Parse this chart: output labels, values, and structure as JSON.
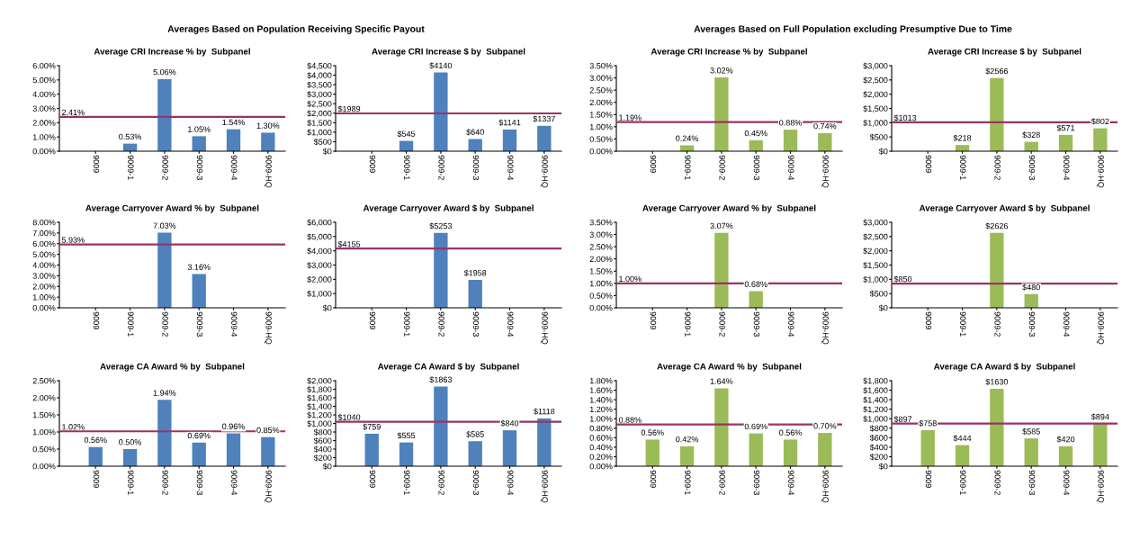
{
  "chart_data": [
    {
      "type": "bar",
      "subtitle": "Averages Based on Population Receiving Specific Payout",
      "title": "Average CRI Increase % by  Subpanel",
      "categories": [
        "9009",
        "9009-1",
        "9009-2",
        "9009-3",
        "9009-4",
        "9009-HQ"
      ],
      "values": [
        null,
        0.53,
        5.06,
        1.05,
        1.54,
        1.3
      ],
      "value_labels": [
        null,
        "0.53%",
        "5.06%",
        "1.05%",
        "1.54%",
        "1.30%"
      ],
      "color": "#4f81bd",
      "ylim": [
        0,
        6
      ],
      "yticks": [
        {
          "value": 0,
          "label": "0.00%"
        },
        {
          "value": 1,
          "label": "1.00%"
        },
        {
          "value": 2,
          "label": "2.00%"
        },
        {
          "value": 3,
          "label": "3.00%"
        },
        {
          "value": 4,
          "label": "4.00%"
        },
        {
          "value": 5,
          "label": "5.00%"
        },
        {
          "value": 6,
          "label": "6.00%"
        }
      ],
      "ref_lines": [
        {
          "axis": "y",
          "value": 2.41,
          "label": "2.41%",
          "color": "#993366"
        }
      ]
    },
    {
      "type": "bar",
      "title": "Average CRI Increase $ by  Subpanel",
      "categories": [
        "9009",
        "9009-1",
        "9009-2",
        "9009-3",
        "9009-4",
        "9009-HQ"
      ],
      "values": [
        null,
        545,
        4140,
        640,
        1141,
        1337
      ],
      "value_labels": [
        null,
        "$545",
        "$4140",
        "$640",
        "$1141",
        "$1337"
      ],
      "color": "#4f81bd",
      "ylim": [
        0,
        4500
      ],
      "yticks": [
        {
          "value": 0,
          "label": "$0"
        },
        {
          "value": 500,
          "label": "$500"
        },
        {
          "value": 1000,
          "label": "$1,000"
        },
        {
          "value": 1500,
          "label": "$1,500"
        },
        {
          "value": 2000,
          "label": "$2,000"
        },
        {
          "value": 2500,
          "label": "$2,500"
        },
        {
          "value": 3000,
          "label": "$3,000"
        },
        {
          "value": 3500,
          "label": "$3,500"
        },
        {
          "value": 4000,
          "label": "$4,000"
        },
        {
          "value": 4500,
          "label": "$4,500"
        }
      ],
      "ref_lines": [
        {
          "axis": "y",
          "value": 1989,
          "label": "$1989",
          "color": "#993366"
        }
      ]
    },
    {
      "type": "bar",
      "subtitle": "Averages Based on Full Population excluding Presumptive Due to Time",
      "title": "Average CRI Increase % by  Subpanel",
      "categories": [
        "9009",
        "9009-1",
        "9009-2",
        "9009-3",
        "9009-4",
        "9009-HQ"
      ],
      "values": [
        null,
        0.24,
        3.02,
        0.45,
        0.88,
        0.74
      ],
      "value_labels": [
        null,
        "0.24%",
        "3.02%",
        "0.45%",
        "0.88%",
        "0.74%"
      ],
      "color": "#9bbb59",
      "ylim": [
        0,
        3.5
      ],
      "yticks": [
        {
          "value": 0,
          "label": "0.00%"
        },
        {
          "value": 0.5,
          "label": "0.50%"
        },
        {
          "value": 1,
          "label": "1.00%"
        },
        {
          "value": 1.5,
          "label": "1.50%"
        },
        {
          "value": 2,
          "label": "2.00%"
        },
        {
          "value": 2.5,
          "label": "2.50%"
        },
        {
          "value": 3,
          "label": "3.00%"
        },
        {
          "value": 3.5,
          "label": "3.50%"
        }
      ],
      "ref_lines": [
        {
          "axis": "y",
          "value": 1.19,
          "label": "1.19%",
          "color": "#993366"
        }
      ]
    },
    {
      "type": "bar",
      "title": "Average CRI Increase $ by  Subpanel",
      "categories": [
        "9009",
        "9009-1",
        "9009-2",
        "9009-3",
        "9009-4",
        "9009-HQ"
      ],
      "values": [
        null,
        218,
        2566,
        328,
        571,
        802
      ],
      "value_labels": [
        null,
        "$218",
        "$2566",
        "$328",
        "$571",
        "$802"
      ],
      "color": "#9bbb59",
      "ylim": [
        0,
        3000
      ],
      "yticks": [
        {
          "value": 0,
          "label": "$0"
        },
        {
          "value": 500,
          "label": "$500"
        },
        {
          "value": 1000,
          "label": "$1,000"
        },
        {
          "value": 1500,
          "label": "$1,500"
        },
        {
          "value": 2000,
          "label": "$2,000"
        },
        {
          "value": 2500,
          "label": "$2,500"
        },
        {
          "value": 3000,
          "label": "$3,000"
        }
      ],
      "ref_lines": [
        {
          "axis": "y",
          "value": 1013,
          "label": "$1013",
          "color": "#993366"
        }
      ]
    },
    {
      "type": "bar",
      "title": "Average Carryover Award % by  Subpanel",
      "categories": [
        "9009",
        "9009-1",
        "9009-2",
        "9009-3",
        "9009-4",
        "9009-HQ"
      ],
      "values": [
        null,
        null,
        7.03,
        3.16,
        null,
        null
      ],
      "value_labels": [
        null,
        null,
        "7.03%",
        "3.16%",
        null,
        null
      ],
      "color": "#4f81bd",
      "ylim": [
        0,
        8
      ],
      "yticks": [
        {
          "value": 0,
          "label": "0.00%"
        },
        {
          "value": 1,
          "label": "1.00%"
        },
        {
          "value": 2,
          "label": "2.00%"
        },
        {
          "value": 3,
          "label": "3.00%"
        },
        {
          "value": 4,
          "label": "4.00%"
        },
        {
          "value": 5,
          "label": "5.00%"
        },
        {
          "value": 6,
          "label": "6.00%"
        },
        {
          "value": 7,
          "label": "7.00%"
        },
        {
          "value": 8,
          "label": "8.00%"
        }
      ],
      "ref_lines": [
        {
          "axis": "y",
          "value": 5.93,
          "label": "5.93%",
          "color": "#993366"
        }
      ]
    },
    {
      "type": "bar",
      "title": "Average Carryover Award $ by  Subpanel",
      "categories": [
        "9009",
        "9009-1",
        "9009-2",
        "9009-3",
        "9009-4",
        "9009-HQ"
      ],
      "values": [
        null,
        null,
        5253,
        1958,
        null,
        null
      ],
      "value_labels": [
        null,
        null,
        "$5253",
        "$1958",
        null,
        null
      ],
      "color": "#4f81bd",
      "ylim": [
        0,
        6000
      ],
      "yticks": [
        {
          "value": 0,
          "label": "$0"
        },
        {
          "value": 1000,
          "label": "$1,000"
        },
        {
          "value": 2000,
          "label": "$2,000"
        },
        {
          "value": 3000,
          "label": "$3,000"
        },
        {
          "value": 4000,
          "label": "$4,000"
        },
        {
          "value": 5000,
          "label": "$5,000"
        },
        {
          "value": 6000,
          "label": "$6,000"
        }
      ],
      "ref_lines": [
        {
          "axis": "y",
          "value": 4155,
          "label": "$4155",
          "color": "#993366"
        }
      ]
    },
    {
      "type": "bar",
      "title": "Average Carryover Award % by  Subpanel",
      "categories": [
        "9009",
        "9009-1",
        "9009-2",
        "9009-3",
        "9009-4",
        "9009-HQ"
      ],
      "values": [
        null,
        null,
        3.07,
        0.68,
        null,
        null
      ],
      "value_labels": [
        null,
        null,
        "3.07%",
        "0.68%",
        null,
        null
      ],
      "color": "#9bbb59",
      "ylim": [
        0,
        3.5
      ],
      "yticks": [
        {
          "value": 0,
          "label": "0.00%"
        },
        {
          "value": 0.5,
          "label": "0.50%"
        },
        {
          "value": 1,
          "label": "1.00%"
        },
        {
          "value": 1.5,
          "label": "1.50%"
        },
        {
          "value": 2,
          "label": "2.00%"
        },
        {
          "value": 2.5,
          "label": "2.50%"
        },
        {
          "value": 3,
          "label": "3.00%"
        },
        {
          "value": 3.5,
          "label": "3.50%"
        }
      ],
      "ref_lines": [
        {
          "axis": "y",
          "value": 1.0,
          "label": "1.00%",
          "color": "#993366"
        }
      ]
    },
    {
      "type": "bar",
      "title": "Average Carryover Award $ by  Subpanel",
      "categories": [
        "9009",
        "9009-1",
        "9009-2",
        "9009-3",
        "9009-4",
        "9009-HQ"
      ],
      "values": [
        null,
        null,
        2626,
        480,
        null,
        null
      ],
      "value_labels": [
        null,
        null,
        "$2626",
        "$480",
        null,
        null
      ],
      "color": "#9bbb59",
      "ylim": [
        0,
        3000
      ],
      "yticks": [
        {
          "value": 0,
          "label": "$0"
        },
        {
          "value": 500,
          "label": "$500"
        },
        {
          "value": 1000,
          "label": "$1,000"
        },
        {
          "value": 1500,
          "label": "$1,500"
        },
        {
          "value": 2000,
          "label": "$2,000"
        },
        {
          "value": 2500,
          "label": "$2,500"
        },
        {
          "value": 3000,
          "label": "$3,000"
        }
      ],
      "ref_lines": [
        {
          "axis": "y",
          "value": 850,
          "label": "$850",
          "color": "#993366"
        }
      ]
    },
    {
      "type": "bar",
      "title": "Average CA Award % by  Subpanel",
      "categories": [
        "9009",
        "9009-1",
        "9009-2",
        "9009-3",
        "9009-4",
        "9009-HQ"
      ],
      "values": [
        0.56,
        0.5,
        1.94,
        0.69,
        0.96,
        0.85
      ],
      "value_labels": [
        "0.56%",
        "0.50%",
        "1.94%",
        "0.69%",
        "0.96%",
        "0.85%"
      ],
      "color": "#4f81bd",
      "ylim": [
        0,
        2.5
      ],
      "yticks": [
        {
          "value": 0,
          "label": "0.00%"
        },
        {
          "value": 0.5,
          "label": "0.50%"
        },
        {
          "value": 1,
          "label": "1.00%"
        },
        {
          "value": 1.5,
          "label": "1.50%"
        },
        {
          "value": 2,
          "label": "2.00%"
        },
        {
          "value": 2.5,
          "label": "2.50%"
        }
      ],
      "ref_lines": [
        {
          "axis": "y",
          "value": 1.02,
          "label": "1.02%",
          "color": "#993366"
        }
      ]
    },
    {
      "type": "bar",
      "title": "Average CA Award $ by  Subpanel",
      "categories": [
        "9009",
        "9009-1",
        "9009-2",
        "9009-3",
        "9009-4",
        "9009-HQ"
      ],
      "values": [
        759,
        555,
        1863,
        585,
        840,
        1118
      ],
      "value_labels": [
        "$759",
        "$555",
        "$1863",
        "$585",
        "$840",
        "$1118"
      ],
      "color": "#4f81bd",
      "ylim": [
        0,
        2000
      ],
      "yticks": [
        {
          "value": 0,
          "label": "$0"
        },
        {
          "value": 200,
          "label": "$200"
        },
        {
          "value": 400,
          "label": "$400"
        },
        {
          "value": 600,
          "label": "$600"
        },
        {
          "value": 800,
          "label": "$800"
        },
        {
          "value": 1000,
          "label": "$1,000"
        },
        {
          "value": 1200,
          "label": "$1,200"
        },
        {
          "value": 1400,
          "label": "$1,400"
        },
        {
          "value": 1600,
          "label": "$1,600"
        },
        {
          "value": 1800,
          "label": "$1,800"
        },
        {
          "value": 2000,
          "label": "$2,000"
        }
      ],
      "ref_lines": [
        {
          "axis": "y",
          "value": 1040,
          "label": "$1040",
          "color": "#993366"
        }
      ]
    },
    {
      "type": "bar",
      "title": "Average CA Award % by  Subpanel",
      "categories": [
        "9009",
        "9009-1",
        "9009-2",
        "9009-3",
        "9009-4",
        "9009-HQ"
      ],
      "values": [
        0.56,
        0.42,
        1.64,
        0.69,
        0.56,
        0.7
      ],
      "value_labels": [
        "0.56%",
        "0.42%",
        "1.64%",
        "0.69%",
        "0.56%",
        "0.70%"
      ],
      "color": "#9bbb59",
      "ylim": [
        0,
        1.8
      ],
      "yticks": [
        {
          "value": 0,
          "label": "0.00%"
        },
        {
          "value": 0.2,
          "label": "0.20%"
        },
        {
          "value": 0.4,
          "label": "0.40%"
        },
        {
          "value": 0.6,
          "label": "0.60%"
        },
        {
          "value": 0.8,
          "label": "0.80%"
        },
        {
          "value": 1.0,
          "label": "1.00%"
        },
        {
          "value": 1.2,
          "label": "1.20%"
        },
        {
          "value": 1.4,
          "label": "1.40%"
        },
        {
          "value": 1.6,
          "label": "1.60%"
        },
        {
          "value": 1.8,
          "label": "1.80%"
        }
      ],
      "ref_lines": [
        {
          "axis": "y",
          "value": 0.88,
          "label": "0.88%",
          "color": "#993366"
        }
      ]
    },
    {
      "type": "bar",
      "title": "Average CA Award $ by  Subpanel",
      "categories": [
        "9009",
        "9009-1",
        "9009-2",
        "9009-3",
        "9009-4",
        "9009-HQ"
      ],
      "values": [
        758,
        444,
        1630,
        585,
        420,
        894
      ],
      "value_labels": [
        "$758",
        "$444",
        "$1630",
        "$585",
        "$420",
        "$894"
      ],
      "color": "#9bbb59",
      "ylim": [
        0,
        1800
      ],
      "yticks": [
        {
          "value": 0,
          "label": "$0"
        },
        {
          "value": 200,
          "label": "$200"
        },
        {
          "value": 400,
          "label": "$400"
        },
        {
          "value": 600,
          "label": "$600"
        },
        {
          "value": 800,
          "label": "$800"
        },
        {
          "value": 1000,
          "label": "$1,000"
        },
        {
          "value": 1200,
          "label": "$1,200"
        },
        {
          "value": 1400,
          "label": "$1,400"
        },
        {
          "value": 1600,
          "label": "$1,600"
        },
        {
          "value": 1800,
          "label": "$1,800"
        }
      ],
      "ref_lines": [
        {
          "axis": "y",
          "value": 897,
          "label": "$897",
          "color": "#993366"
        }
      ]
    }
  ]
}
